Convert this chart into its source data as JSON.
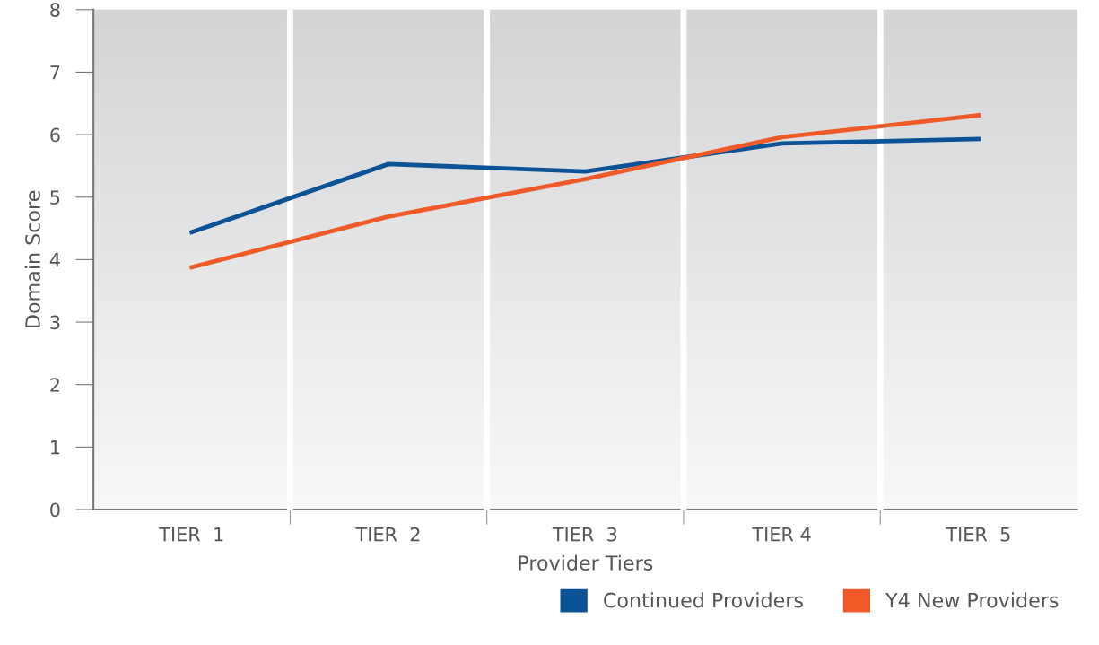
{
  "chart_data": {
    "type": "line",
    "xlabel": "Provider Tiers",
    "ylabel": "Domain Score",
    "categories": [
      "TIER  1",
      "TIER  2",
      "TIER  3",
      "TIER 4",
      "TIER  5"
    ],
    "series": [
      {
        "name": "Continued Providers",
        "color": "#0b5394",
        "values": [
          4.44,
          5.53,
          5.41,
          5.86,
          5.93
        ]
      },
      {
        "name": "Y4 New Providers",
        "color": "#f05a28",
        "values": [
          3.88,
          4.69,
          5.29,
          5.96,
          6.31
        ]
      }
    ],
    "ylim": [
      0,
      8
    ],
    "yticks": [
      0,
      1,
      2,
      3,
      4,
      5,
      6,
      7,
      8
    ],
    "grid": "x",
    "legend": "bottom right",
    "marker": "none",
    "line_style": "solid"
  }
}
